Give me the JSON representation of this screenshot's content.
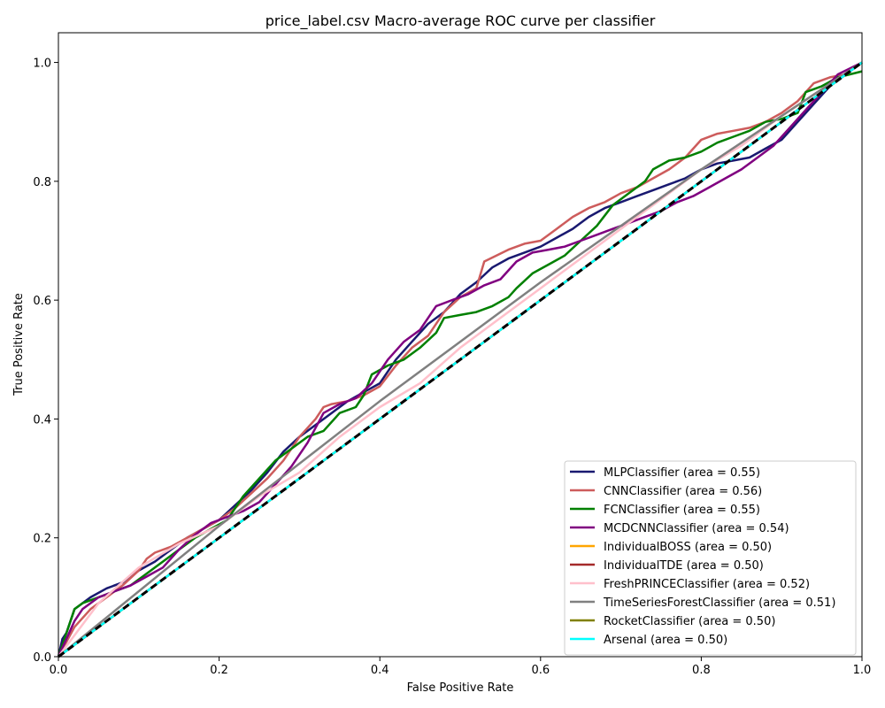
{
  "chart_data": {
    "type": "line",
    "title": "price_label.csv Macro-average ROC curve per classifier",
    "xlabel": "False Positive Rate",
    "ylabel": "True Positive Rate",
    "xlim": [
      0.0,
      1.0
    ],
    "ylim": [
      0.0,
      1.05
    ],
    "xticks": [
      "0.0",
      "0.2",
      "0.4",
      "0.6",
      "0.8",
      "1.0"
    ],
    "yticks": [
      "0.0",
      "0.2",
      "0.4",
      "0.6",
      "0.8",
      "1.0"
    ],
    "legend_position": "lower-right",
    "grid": false,
    "series": [
      {
        "name": "MLPClassifier",
        "label": "MLPClassifier (area = 0.55)",
        "color": "#191970",
        "x": [
          0,
          0.005,
          0.01,
          0.02,
          0.03,
          0.04,
          0.06,
          0.08,
          0.1,
          0.12,
          0.14,
          0.16,
          0.18,
          0.2,
          0.22,
          0.24,
          0.26,
          0.28,
          0.3,
          0.32,
          0.34,
          0.36,
          0.38,
          0.4,
          0.42,
          0.44,
          0.46,
          0.48,
          0.5,
          0.52,
          0.54,
          0.56,
          0.58,
          0.6,
          0.62,
          0.64,
          0.66,
          0.68,
          0.7,
          0.72,
          0.74,
          0.76,
          0.78,
          0.8,
          0.82,
          0.84,
          0.86,
          0.88,
          0.9,
          0.92,
          0.94,
          0.96,
          0.98,
          1.0
        ],
        "y": [
          0,
          0.03,
          0.04,
          0.08,
          0.09,
          0.1,
          0.115,
          0.125,
          0.145,
          0.16,
          0.18,
          0.2,
          0.215,
          0.23,
          0.255,
          0.28,
          0.31,
          0.345,
          0.37,
          0.39,
          0.41,
          0.43,
          0.445,
          0.46,
          0.5,
          0.53,
          0.56,
          0.58,
          0.61,
          0.63,
          0.655,
          0.67,
          0.68,
          0.69,
          0.705,
          0.72,
          0.74,
          0.755,
          0.765,
          0.775,
          0.785,
          0.795,
          0.805,
          0.82,
          0.83,
          0.835,
          0.84,
          0.855,
          0.87,
          0.9,
          0.93,
          0.96,
          0.98,
          1.0
        ]
      },
      {
        "name": "CNNClassifier",
        "label": "CNNClassifier (area = 0.56)",
        "color": "#cd5c5c",
        "x": [
          0,
          0.02,
          0.04,
          0.06,
          0.08,
          0.1,
          0.11,
          0.12,
          0.14,
          0.16,
          0.18,
          0.2,
          0.22,
          0.24,
          0.26,
          0.28,
          0.3,
          0.32,
          0.33,
          0.34,
          0.36,
          0.38,
          0.4,
          0.42,
          0.44,
          0.46,
          0.48,
          0.5,
          0.52,
          0.53,
          0.56,
          0.58,
          0.6,
          0.62,
          0.64,
          0.66,
          0.68,
          0.7,
          0.72,
          0.74,
          0.76,
          0.78,
          0.8,
          0.82,
          0.84,
          0.86,
          0.88,
          0.9,
          0.92,
          0.94,
          0.96,
          0.98,
          1.0
        ],
        "y": [
          0,
          0.05,
          0.08,
          0.1,
          0.12,
          0.145,
          0.165,
          0.175,
          0.185,
          0.2,
          0.215,
          0.23,
          0.25,
          0.275,
          0.3,
          0.33,
          0.37,
          0.4,
          0.42,
          0.425,
          0.43,
          0.44,
          0.455,
          0.49,
          0.52,
          0.54,
          0.58,
          0.605,
          0.62,
          0.665,
          0.685,
          0.695,
          0.7,
          0.72,
          0.74,
          0.755,
          0.765,
          0.78,
          0.79,
          0.805,
          0.82,
          0.84,
          0.87,
          0.88,
          0.885,
          0.89,
          0.9,
          0.915,
          0.935,
          0.965,
          0.975,
          0.98,
          1.0
        ]
      },
      {
        "name": "FCNClassifier",
        "label": "FCNClassifier (area = 0.55)",
        "color": "#008000",
        "x": [
          0,
          0.01,
          0.02,
          0.03,
          0.05,
          0.07,
          0.09,
          0.11,
          0.13,
          0.15,
          0.17,
          0.19,
          0.21,
          0.23,
          0.25,
          0.27,
          0.29,
          0.31,
          0.33,
          0.35,
          0.37,
          0.38,
          0.39,
          0.41,
          0.43,
          0.45,
          0.47,
          0.48,
          0.5,
          0.52,
          0.54,
          0.56,
          0.57,
          0.59,
          0.61,
          0.63,
          0.65,
          0.67,
          0.69,
          0.71,
          0.73,
          0.74,
          0.76,
          0.78,
          0.8,
          0.82,
          0.84,
          0.86,
          0.88,
          0.9,
          0.92,
          0.93,
          0.95,
          0.97,
          1.0
        ],
        "y": [
          0,
          0.04,
          0.08,
          0.09,
          0.1,
          0.11,
          0.12,
          0.14,
          0.16,
          0.18,
          0.2,
          0.215,
          0.23,
          0.27,
          0.3,
          0.33,
          0.35,
          0.37,
          0.38,
          0.41,
          0.42,
          0.44,
          0.475,
          0.49,
          0.5,
          0.52,
          0.545,
          0.57,
          0.575,
          0.58,
          0.59,
          0.605,
          0.62,
          0.645,
          0.66,
          0.675,
          0.7,
          0.725,
          0.76,
          0.78,
          0.8,
          0.82,
          0.835,
          0.84,
          0.85,
          0.865,
          0.875,
          0.885,
          0.9,
          0.905,
          0.915,
          0.95,
          0.96,
          0.975,
          0.985
        ]
      },
      {
        "name": "MCDCNNClassifier",
        "label": "MCDCNNClassifier (area = 0.54)",
        "color": "#800080",
        "x": [
          0,
          0.01,
          0.02,
          0.03,
          0.05,
          0.07,
          0.09,
          0.11,
          0.13,
          0.15,
          0.17,
          0.19,
          0.21,
          0.23,
          0.25,
          0.27,
          0.29,
          0.31,
          0.33,
          0.35,
          0.37,
          0.39,
          0.41,
          0.43,
          0.45,
          0.47,
          0.49,
          0.51,
          0.53,
          0.55,
          0.57,
          0.59,
          0.61,
          0.63,
          0.65,
          0.67,
          0.69,
          0.71,
          0.73,
          0.75,
          0.77,
          0.79,
          0.81,
          0.83,
          0.85,
          0.87,
          0.89,
          0.91,
          0.93,
          0.95,
          0.97,
          1.0
        ],
        "y": [
          0,
          0.03,
          0.06,
          0.08,
          0.1,
          0.11,
          0.12,
          0.135,
          0.15,
          0.18,
          0.205,
          0.225,
          0.235,
          0.245,
          0.26,
          0.29,
          0.32,
          0.36,
          0.41,
          0.425,
          0.435,
          0.46,
          0.5,
          0.53,
          0.55,
          0.59,
          0.6,
          0.61,
          0.625,
          0.635,
          0.665,
          0.68,
          0.685,
          0.69,
          0.7,
          0.71,
          0.72,
          0.73,
          0.74,
          0.75,
          0.765,
          0.775,
          0.79,
          0.805,
          0.82,
          0.84,
          0.86,
          0.89,
          0.92,
          0.95,
          0.98,
          1.0
        ]
      },
      {
        "name": "IndividualBOSS",
        "label": "IndividualBOSS (area = 0.50)",
        "color": "#ffa500",
        "x": [
          0,
          1
        ],
        "y": [
          0,
          1
        ]
      },
      {
        "name": "IndividualTDE",
        "label": "IndividualTDE (area = 0.50)",
        "color": "#a52a2a",
        "x": [
          0,
          1
        ],
        "y": [
          0,
          1
        ]
      },
      {
        "name": "FreshPRINCEClassifier",
        "label": "FreshPRINCEClassifier (area = 0.52)",
        "color": "#ffc0cb",
        "x": [
          0,
          0.05,
          0.1,
          0.15,
          0.2,
          0.25,
          0.3,
          0.35,
          0.4,
          0.45,
          0.5,
          0.55,
          0.6,
          0.65,
          0.7,
          0.75,
          0.8,
          0.85,
          0.9,
          0.95,
          1.0
        ],
        "y": [
          0,
          0.09,
          0.15,
          0.19,
          0.22,
          0.27,
          0.31,
          0.37,
          0.42,
          0.46,
          0.52,
          0.57,
          0.62,
          0.67,
          0.72,
          0.77,
          0.82,
          0.86,
          0.91,
          0.955,
          1.0
        ]
      },
      {
        "name": "TimeSeriesForestClassifier",
        "label": "TimeSeriesForestClassifier (area = 0.51)",
        "color": "#808080",
        "x": [
          0,
          0.2,
          0.4,
          0.6,
          0.8,
          1.0
        ],
        "y": [
          0,
          0.22,
          0.43,
          0.63,
          0.82,
          1.0
        ]
      },
      {
        "name": "RocketClassifier",
        "label": "RocketClassifier (area = 0.50)",
        "color": "#808000",
        "x": [
          0,
          1
        ],
        "y": [
          0,
          1
        ]
      },
      {
        "name": "Arsenal",
        "label": "Arsenal (area = 0.50)",
        "color": "#00ffff",
        "x": [
          0,
          1
        ],
        "y": [
          0,
          1
        ]
      }
    ],
    "reference_line": {
      "x": [
        0,
        1
      ],
      "y": [
        0,
        1
      ],
      "color": "#000000",
      "style": "dashed"
    }
  }
}
